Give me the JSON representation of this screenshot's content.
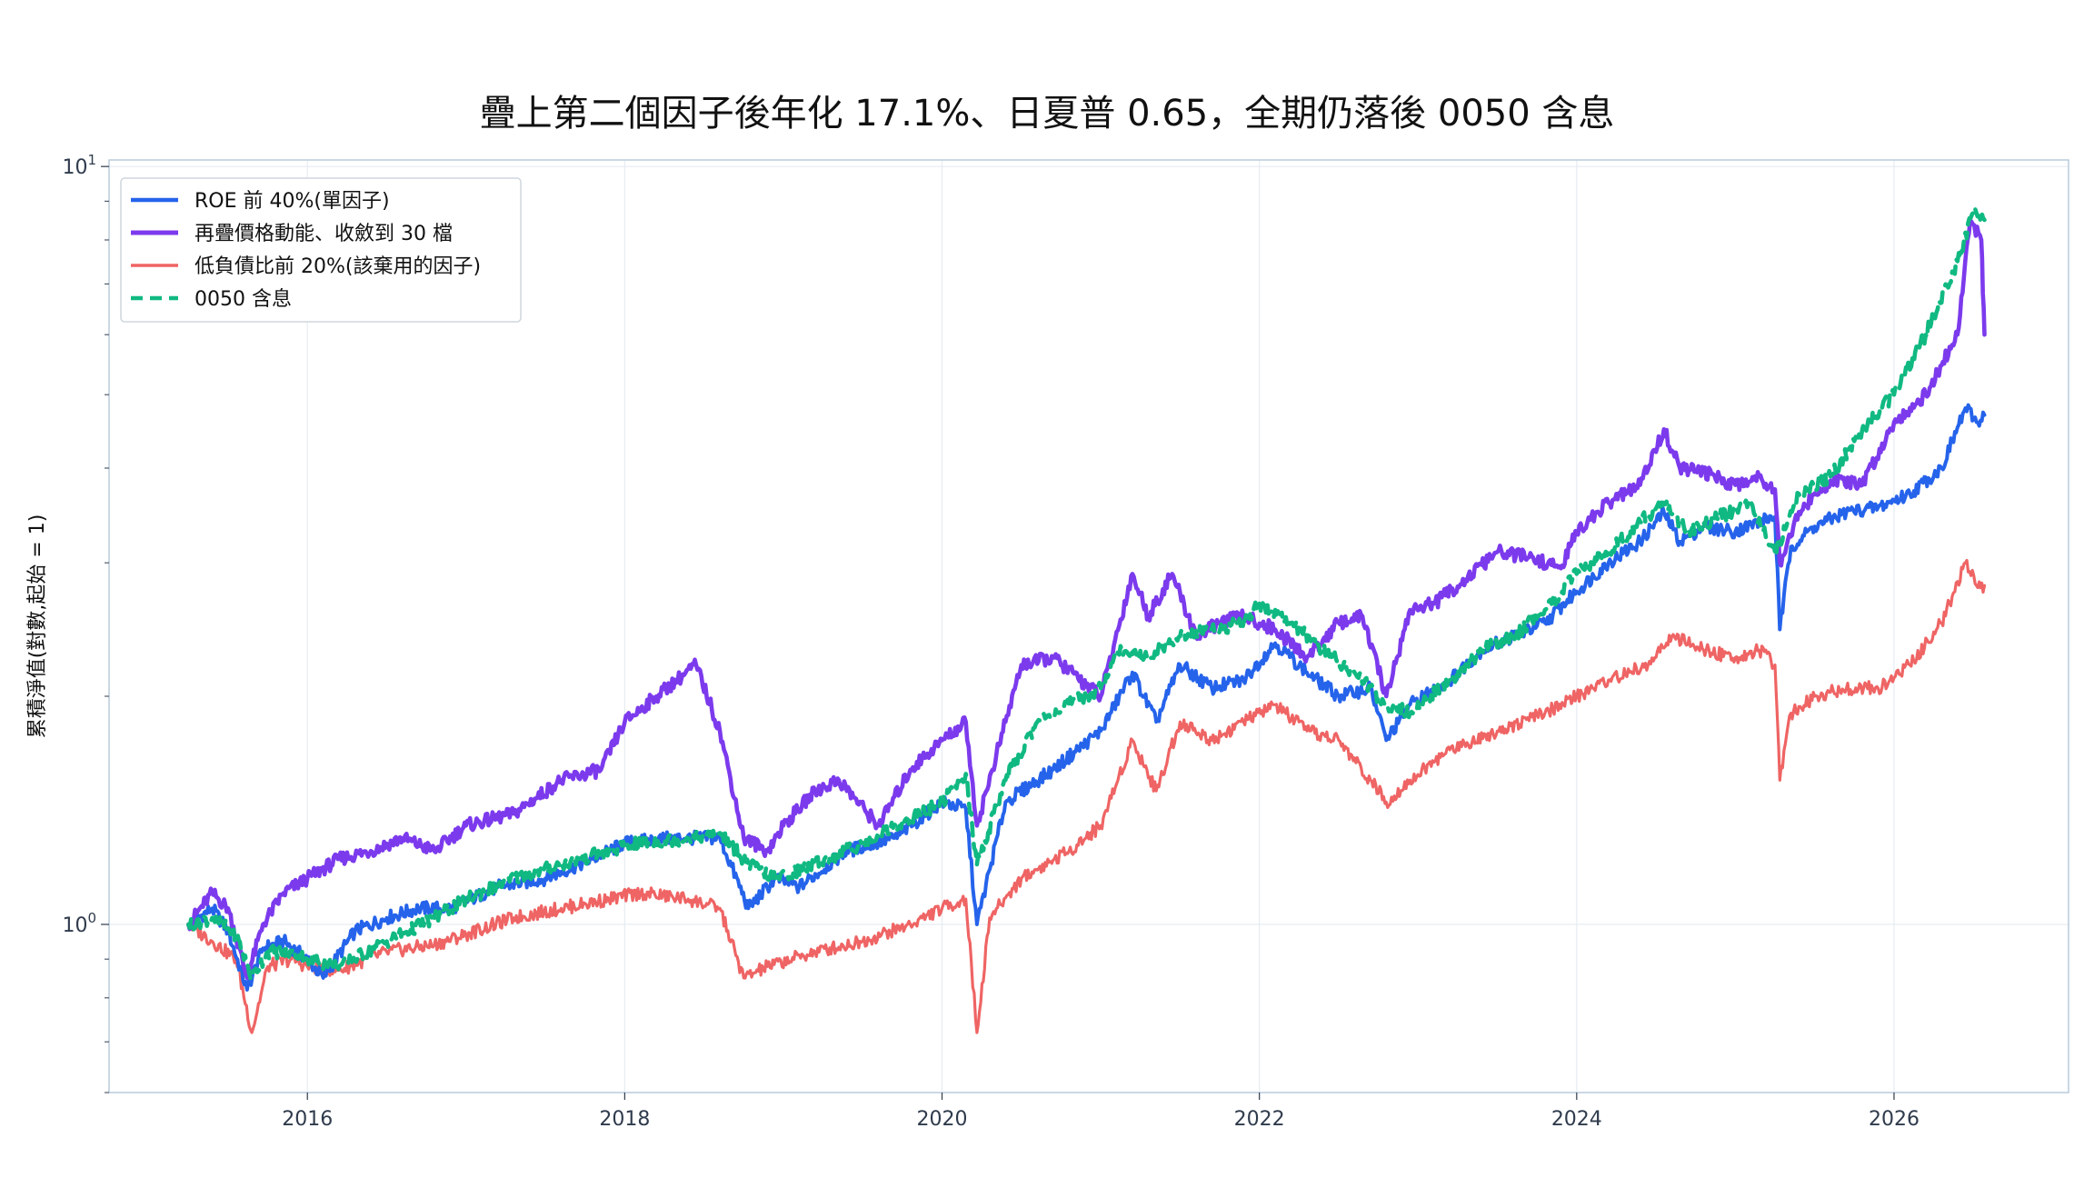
{
  "chart_data": {
    "type": "line",
    "title": "疊上第二個因子後年化 17.1%、日夏普 0.65，全期仍落後 0050 含息",
    "ylabel": "累積淨值(對數,起始 = 1)",
    "xlabel": "",
    "y_scale": "log",
    "xlim": [
      2014.75,
      2027.1
    ],
    "ylim": [
      0.6,
      10.2
    ],
    "x_ticks": [
      2016,
      2018,
      2020,
      2022,
      2024,
      2026
    ],
    "x_tick_labels": [
      "2016",
      "2018",
      "2020",
      "2022",
      "2024",
      "2026"
    ],
    "y_ticks": [
      1,
      10
    ],
    "y_tick_base": "10",
    "y_tick_exponents": [
      "0",
      "1"
    ],
    "grid": true,
    "legend_position": "top-left",
    "series": [
      {
        "name": "ROE 前 40%(單因子)",
        "color": "#2563eb",
        "style": "solid",
        "x": [
          2015.25,
          2015.4,
          2015.5,
          2015.62,
          2015.72,
          2015.85,
          2016.0,
          2016.1,
          2016.3,
          2016.5,
          2016.7,
          2016.9,
          2017.2,
          2017.5,
          2017.8,
          2018.0,
          2018.3,
          2018.6,
          2018.78,
          2018.95,
          2019.1,
          2019.4,
          2019.7,
          2020.0,
          2020.15,
          2020.22,
          2020.4,
          2020.7,
          2021.0,
          2021.2,
          2021.35,
          2021.5,
          2021.7,
          2021.9,
          2022.1,
          2022.3,
          2022.5,
          2022.7,
          2022.8,
          2022.95,
          2023.2,
          2023.4,
          2023.6,
          2023.8,
          2024.0,
          2024.2,
          2024.4,
          2024.55,
          2024.65,
          2024.8,
          2025.0,
          2025.15,
          2025.25,
          2025.28,
          2025.35,
          2025.5,
          2025.7,
          2025.9,
          2026.1,
          2026.3,
          2026.45,
          2026.52,
          2026.57
        ],
        "values": [
          1.0,
          1.05,
          0.98,
          0.82,
          0.93,
          0.95,
          0.9,
          0.85,
          0.98,
          1.02,
          1.05,
          1.05,
          1.12,
          1.15,
          1.22,
          1.28,
          1.3,
          1.3,
          1.05,
          1.15,
          1.12,
          1.25,
          1.3,
          1.45,
          1.42,
          1.0,
          1.45,
          1.6,
          1.8,
          2.15,
          1.85,
          2.2,
          2.05,
          2.1,
          2.35,
          2.15,
          2.0,
          2.05,
          1.75,
          1.95,
          2.1,
          2.3,
          2.4,
          2.5,
          2.75,
          3.0,
          3.2,
          3.5,
          3.2,
          3.35,
          3.3,
          3.4,
          3.45,
          2.45,
          3.15,
          3.35,
          3.5,
          3.55,
          3.7,
          4.0,
          4.8,
          4.6,
          4.7
        ]
      },
      {
        "name": "再疊價格動能、收斂到 30 檔",
        "color": "#7c3aed",
        "style": "solid",
        "x": [
          2015.25,
          2015.4,
          2015.5,
          2015.62,
          2015.72,
          2015.85,
          2016.0,
          2016.2,
          2016.4,
          2016.6,
          2016.8,
          2017.0,
          2017.3,
          2017.6,
          2017.85,
          2018.0,
          2018.2,
          2018.45,
          2018.6,
          2018.75,
          2018.9,
          2019.0,
          2019.2,
          2019.35,
          2019.6,
          2019.8,
          2020.0,
          2020.15,
          2020.22,
          2020.4,
          2020.5,
          2020.7,
          2021.0,
          2021.2,
          2021.3,
          2021.45,
          2021.6,
          2021.75,
          2021.9,
          2022.1,
          2022.3,
          2022.5,
          2022.65,
          2022.8,
          2022.95,
          2023.1,
          2023.3,
          2023.5,
          2023.7,
          2023.9,
          2024.0,
          2024.2,
          2024.4,
          2024.55,
          2024.65,
          2024.8,
          2025.0,
          2025.15,
          2025.25,
          2025.28,
          2025.4,
          2025.6,
          2025.8,
          2026.0,
          2026.2,
          2026.4,
          2026.48,
          2026.55,
          2026.57
        ],
        "values": [
          1.0,
          1.1,
          1.05,
          0.85,
          1.0,
          1.1,
          1.15,
          1.22,
          1.25,
          1.3,
          1.25,
          1.35,
          1.4,
          1.55,
          1.6,
          1.85,
          2.0,
          2.2,
          1.8,
          1.3,
          1.25,
          1.35,
          1.5,
          1.55,
          1.35,
          1.6,
          1.75,
          1.85,
          1.35,
          1.85,
          2.2,
          2.25,
          2.0,
          2.9,
          2.55,
          2.9,
          2.4,
          2.5,
          2.55,
          2.45,
          2.25,
          2.5,
          2.55,
          2.0,
          2.6,
          2.65,
          2.85,
          3.1,
          3.05,
          2.95,
          3.3,
          3.6,
          3.8,
          4.5,
          4.0,
          3.95,
          3.8,
          3.9,
          3.75,
          3.0,
          3.5,
          3.85,
          3.8,
          4.6,
          5.0,
          6.0,
          8.5,
          8.0,
          6.0
        ]
      },
      {
        "name": "低負債比前 20%(該棄用的因子)",
        "color": "#ef6464",
        "style": "solid",
        "x": [
          2015.25,
          2015.4,
          2015.55,
          2015.65,
          2015.75,
          2015.9,
          2016.0,
          2016.2,
          2016.5,
          2016.8,
          2017.0,
          2017.3,
          2017.6,
          2017.9,
          2018.1,
          2018.4,
          2018.6,
          2018.75,
          2018.9,
          2019.2,
          2019.5,
          2019.8,
          2020.0,
          2020.15,
          2020.22,
          2020.3,
          2020.5,
          2020.8,
          2021.0,
          2021.2,
          2021.35,
          2021.5,
          2021.7,
          2021.9,
          2022.1,
          2022.3,
          2022.5,
          2022.7,
          2022.8,
          2022.95,
          2023.2,
          2023.5,
          2023.8,
          2024.0,
          2024.2,
          2024.45,
          2024.6,
          2024.8,
          2025.0,
          2025.15,
          2025.25,
          2025.28,
          2025.35,
          2025.5,
          2025.7,
          2025.9,
          2026.1,
          2026.3,
          2026.45,
          2026.52,
          2026.57
        ],
        "values": [
          1.0,
          0.95,
          0.9,
          0.72,
          0.88,
          0.9,
          0.88,
          0.87,
          0.92,
          0.94,
          0.97,
          1.02,
          1.05,
          1.08,
          1.1,
          1.08,
          1.05,
          0.85,
          0.88,
          0.92,
          0.95,
          1.0,
          1.05,
          1.08,
          0.72,
          1.02,
          1.15,
          1.25,
          1.35,
          1.75,
          1.5,
          1.85,
          1.75,
          1.85,
          1.95,
          1.8,
          1.75,
          1.55,
          1.45,
          1.55,
          1.7,
          1.8,
          1.9,
          2.0,
          2.1,
          2.2,
          2.4,
          2.3,
          2.25,
          2.3,
          2.2,
          1.55,
          1.9,
          2.0,
          2.05,
          2.05,
          2.2,
          2.5,
          3.0,
          2.8,
          2.8
        ]
      },
      {
        "name": "0050 含息",
        "color": "#10b981",
        "style": "dashed",
        "x": [
          2015.25,
          2015.4,
          2015.55,
          2015.65,
          2015.75,
          2015.9,
          2016.0,
          2016.2,
          2016.5,
          2016.8,
          2017.0,
          2017.3,
          2017.6,
          2017.9,
          2018.1,
          2018.4,
          2018.6,
          2018.78,
          2018.95,
          2019.2,
          2019.5,
          2019.8,
          2020.0,
          2020.15,
          2020.22,
          2020.4,
          2020.6,
          2020.8,
          2021.0,
          2021.1,
          2021.3,
          2021.5,
          2021.7,
          2021.9,
          2022.0,
          2022.2,
          2022.4,
          2022.6,
          2022.8,
          2022.95,
          2023.2,
          2023.4,
          2023.6,
          2023.8,
          2024.0,
          2024.2,
          2024.4,
          2024.55,
          2024.7,
          2024.9,
          2025.1,
          2025.25,
          2025.28,
          2025.4,
          2025.6,
          2025.8,
          2026.0,
          2026.2,
          2026.4,
          2026.5,
          2026.57
        ],
        "values": [
          1.0,
          1.02,
          0.97,
          0.85,
          0.92,
          0.92,
          0.9,
          0.88,
          0.95,
          1.02,
          1.08,
          1.15,
          1.2,
          1.25,
          1.28,
          1.3,
          1.32,
          1.2,
          1.15,
          1.2,
          1.28,
          1.38,
          1.45,
          1.58,
          1.2,
          1.55,
          1.85,
          1.95,
          2.05,
          2.3,
          2.25,
          2.4,
          2.45,
          2.5,
          2.65,
          2.5,
          2.3,
          2.15,
          1.95,
          1.9,
          2.1,
          2.3,
          2.4,
          2.6,
          2.9,
          3.1,
          3.4,
          3.6,
          3.3,
          3.45,
          3.6,
          3.1,
          3.2,
          3.7,
          3.9,
          4.5,
          5.0,
          6.0,
          7.5,
          8.7,
          8.5
        ]
      }
    ]
  }
}
